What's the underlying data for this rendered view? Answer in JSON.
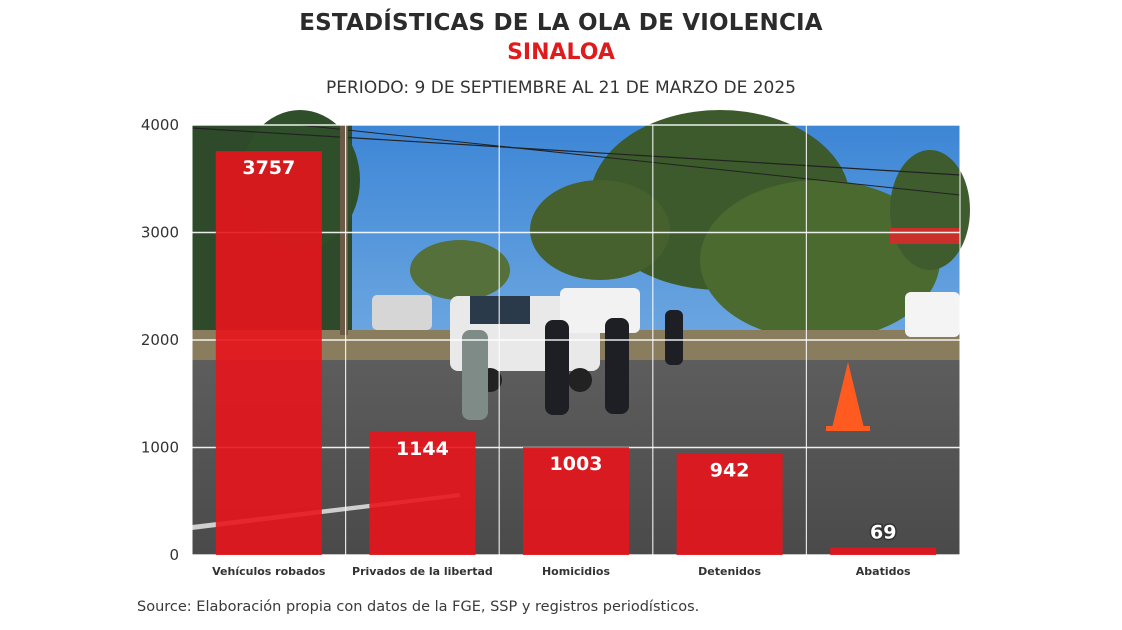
{
  "chart_data": {
    "type": "bar",
    "title": "ESTADÍSTICAS DE LA OLA DE VIOLENCIA",
    "subtitle": "SINALOA",
    "period": "PERIODO: 9 DE SEPTIEMBRE AL 21 DE MARZO DE 2025",
    "categories": [
      "Vehículos robados",
      "Privados de la libertad",
      "Homicidios",
      "Detenidos",
      "Abatidos"
    ],
    "values": [
      3757,
      1144,
      1003,
      942,
      69
    ],
    "ylim": [
      0,
      4000
    ],
    "yticks": [
      0,
      1000,
      2000,
      3000,
      4000
    ],
    "xlabel": "",
    "ylabel": "",
    "grid": true,
    "bar_color": "#e8141c",
    "background": "photo",
    "source": "Source: Elaboración propia con datos de la FGE, SSP y registros periodísticos."
  },
  "colors": {
    "title": "#2b2b2b",
    "subtitle": "#e01b1b",
    "bar": "#e8141c"
  }
}
